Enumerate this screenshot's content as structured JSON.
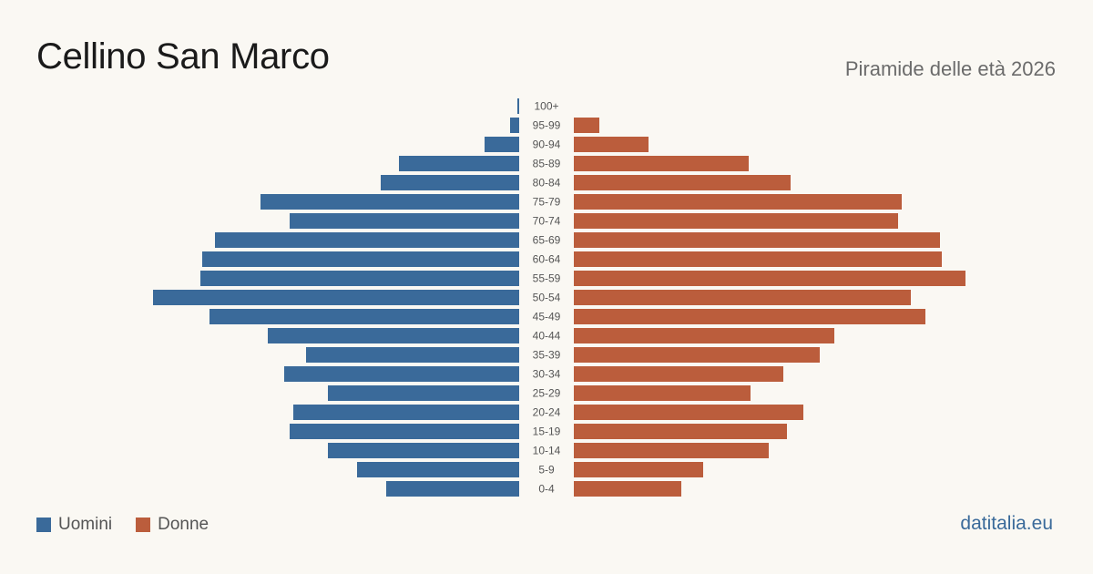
{
  "title": "Cellino San Marco",
  "subtitle": "Piramide delle età 2026",
  "site": "datitalia.eu",
  "colors": {
    "men": "#3a6a9a",
    "women": "#bb5d3c"
  },
  "chart_data": {
    "type": "bar",
    "orientation": "horizontal-pyramid",
    "categories": [
      "100+",
      "95-99",
      "90-94",
      "85-89",
      "80-84",
      "75-79",
      "70-74",
      "65-69",
      "60-64",
      "55-59",
      "50-54",
      "45-49",
      "40-44",
      "35-39",
      "30-34",
      "25-29",
      "20-24",
      "15-19",
      "10-14",
      "5-9",
      "0-4"
    ],
    "series": [
      {
        "name": "Uomini",
        "values": [
          1,
          5,
          19,
          66,
          76,
          142,
          126,
          167,
          174,
          175,
          201,
          170,
          138,
          117,
          129,
          105,
          124,
          126,
          105,
          89,
          73
        ]
      },
      {
        "name": "Donne",
        "values": [
          0,
          14,
          41,
          96,
          119,
          180,
          178,
          201,
          202,
          215,
          185,
          193,
          143,
          135,
          115,
          97,
          126,
          117,
          107,
          71,
          59
        ]
      }
    ],
    "xlim": [
      0,
      215
    ]
  }
}
